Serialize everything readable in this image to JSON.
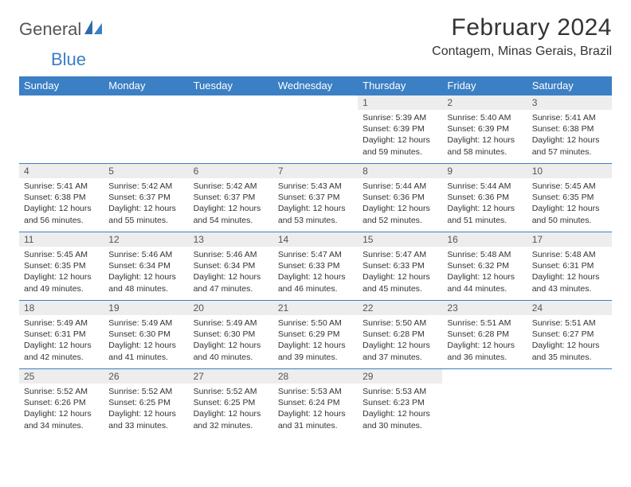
{
  "brand": {
    "text1": "General",
    "text2": "Blue"
  },
  "title": "February 2024",
  "location": "Contagem, Minas Gerais, Brazil",
  "colors": {
    "header_bg": "#3b7fc4",
    "daynum_bg": "#ededed",
    "row_border": "#3b7fc4",
    "page_bg": "#ffffff",
    "text": "#333333"
  },
  "weekdays": [
    "Sunday",
    "Monday",
    "Tuesday",
    "Wednesday",
    "Thursday",
    "Friday",
    "Saturday"
  ],
  "weeks": [
    [
      null,
      null,
      null,
      null,
      {
        "n": "1",
        "sr": "5:39 AM",
        "ss": "6:39 PM",
        "dl": "12 hours and 59 minutes."
      },
      {
        "n": "2",
        "sr": "5:40 AM",
        "ss": "6:39 PM",
        "dl": "12 hours and 58 minutes."
      },
      {
        "n": "3",
        "sr": "5:41 AM",
        "ss": "6:38 PM",
        "dl": "12 hours and 57 minutes."
      }
    ],
    [
      {
        "n": "4",
        "sr": "5:41 AM",
        "ss": "6:38 PM",
        "dl": "12 hours and 56 minutes."
      },
      {
        "n": "5",
        "sr": "5:42 AM",
        "ss": "6:37 PM",
        "dl": "12 hours and 55 minutes."
      },
      {
        "n": "6",
        "sr": "5:42 AM",
        "ss": "6:37 PM",
        "dl": "12 hours and 54 minutes."
      },
      {
        "n": "7",
        "sr": "5:43 AM",
        "ss": "6:37 PM",
        "dl": "12 hours and 53 minutes."
      },
      {
        "n": "8",
        "sr": "5:44 AM",
        "ss": "6:36 PM",
        "dl": "12 hours and 52 minutes."
      },
      {
        "n": "9",
        "sr": "5:44 AM",
        "ss": "6:36 PM",
        "dl": "12 hours and 51 minutes."
      },
      {
        "n": "10",
        "sr": "5:45 AM",
        "ss": "6:35 PM",
        "dl": "12 hours and 50 minutes."
      }
    ],
    [
      {
        "n": "11",
        "sr": "5:45 AM",
        "ss": "6:35 PM",
        "dl": "12 hours and 49 minutes."
      },
      {
        "n": "12",
        "sr": "5:46 AM",
        "ss": "6:34 PM",
        "dl": "12 hours and 48 minutes."
      },
      {
        "n": "13",
        "sr": "5:46 AM",
        "ss": "6:34 PM",
        "dl": "12 hours and 47 minutes."
      },
      {
        "n": "14",
        "sr": "5:47 AM",
        "ss": "6:33 PM",
        "dl": "12 hours and 46 minutes."
      },
      {
        "n": "15",
        "sr": "5:47 AM",
        "ss": "6:33 PM",
        "dl": "12 hours and 45 minutes."
      },
      {
        "n": "16",
        "sr": "5:48 AM",
        "ss": "6:32 PM",
        "dl": "12 hours and 44 minutes."
      },
      {
        "n": "17",
        "sr": "5:48 AM",
        "ss": "6:31 PM",
        "dl": "12 hours and 43 minutes."
      }
    ],
    [
      {
        "n": "18",
        "sr": "5:49 AM",
        "ss": "6:31 PM",
        "dl": "12 hours and 42 minutes."
      },
      {
        "n": "19",
        "sr": "5:49 AM",
        "ss": "6:30 PM",
        "dl": "12 hours and 41 minutes."
      },
      {
        "n": "20",
        "sr": "5:49 AM",
        "ss": "6:30 PM",
        "dl": "12 hours and 40 minutes."
      },
      {
        "n": "21",
        "sr": "5:50 AM",
        "ss": "6:29 PM",
        "dl": "12 hours and 39 minutes."
      },
      {
        "n": "22",
        "sr": "5:50 AM",
        "ss": "6:28 PM",
        "dl": "12 hours and 37 minutes."
      },
      {
        "n": "23",
        "sr": "5:51 AM",
        "ss": "6:28 PM",
        "dl": "12 hours and 36 minutes."
      },
      {
        "n": "24",
        "sr": "5:51 AM",
        "ss": "6:27 PM",
        "dl": "12 hours and 35 minutes."
      }
    ],
    [
      {
        "n": "25",
        "sr": "5:52 AM",
        "ss": "6:26 PM",
        "dl": "12 hours and 34 minutes."
      },
      {
        "n": "26",
        "sr": "5:52 AM",
        "ss": "6:25 PM",
        "dl": "12 hours and 33 minutes."
      },
      {
        "n": "27",
        "sr": "5:52 AM",
        "ss": "6:25 PM",
        "dl": "12 hours and 32 minutes."
      },
      {
        "n": "28",
        "sr": "5:53 AM",
        "ss": "6:24 PM",
        "dl": "12 hours and 31 minutes."
      },
      {
        "n": "29",
        "sr": "5:53 AM",
        "ss": "6:23 PM",
        "dl": "12 hours and 30 minutes."
      },
      null,
      null
    ]
  ],
  "labels": {
    "sunrise": "Sunrise: ",
    "sunset": "Sunset: ",
    "daylight": "Daylight: "
  }
}
